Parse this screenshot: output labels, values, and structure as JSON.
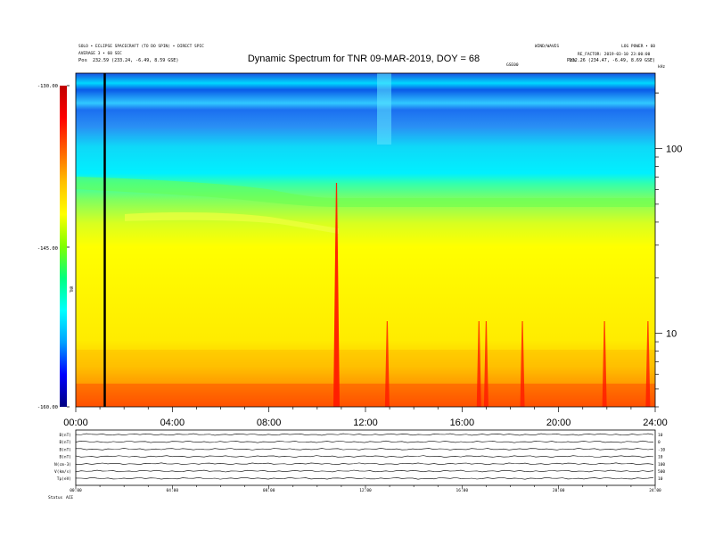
{
  "header": {
    "title": "Dynamic Spectrum for TNR 09-MAR-2019, DOY = 68",
    "meta_left_1": "SOLO • ECLIPSE SPACECRAFT (TO DO SPIN) • DIRECT SPIC",
    "meta_left_2": "AVERAGE 3 • 60 SEC",
    "meta_right_1": "WIND/WAVES",
    "meta_right_2": "LOG POWER • 60",
    "meta_right_3": "RE_FACTOR: 2019-03-10 23:00:00",
    "pos_left_label": "Pos",
    "pos_left_value": "232.59 (233.24, -6.49, 8.59 GSE)",
    "pos_right_label": "Pos",
    "pos_right_value": "232.26 (234.47, -6.49, 8.69 GSE)",
    "center_tag": "GSE00",
    "khz_label": "kHz"
  },
  "colorbar": {
    "ticks": [
      "-130.00",
      "-145.00",
      "-160.00"
    ],
    "unit": "TNR",
    "colors": [
      "#000080",
      "#0000ff",
      "#00a0ff",
      "#00ffff",
      "#00ff80",
      "#80ff00",
      "#ffff00",
      "#ffc000",
      "#ff6000",
      "#ff0000",
      "#c00000"
    ]
  },
  "bottom_panel": {
    "rows": [
      {
        "left": "B(nT)",
        "right": "10"
      },
      {
        "left": "B(nT)",
        "right": "0"
      },
      {
        "left": "B(nT)",
        "right": "-10"
      },
      {
        "left": "B(nT)",
        "right": "10"
      },
      {
        "left": "N(cm-3)",
        "right": "100"
      },
      {
        "left": "V(km/s)",
        "right": "500"
      },
      {
        "left": "Tp(eV)",
        "right": "10"
      }
    ],
    "footer_left": "Status",
    "footer_left2": "ACE",
    "x_ticks": [
      "00:00",
      "04:00",
      "08:00",
      "12:00",
      "16:00",
      "20:00",
      "24:00"
    ]
  },
  "chart_data": {
    "type": "heatmap",
    "title": "Dynamic Spectrum for TNR 09-MAR-2019, DOY = 68",
    "xlabel": "",
    "ylabel": "kHz",
    "x_ticks": [
      "00:00",
      "04:00",
      "08:00",
      "12:00",
      "16:00",
      "20:00",
      "24:00"
    ],
    "x_range_hours": [
      0,
      24
    ],
    "y_scale": "log",
    "y_ticks": [
      10,
      100
    ],
    "y_range_khz": [
      4,
      256
    ],
    "color_scale_range": [
      -160,
      -130
    ],
    "color_ticks": [
      -130,
      -145,
      -160
    ],
    "vertical_marker_hour": 1.2,
    "bursts": [
      {
        "time_hour": 10.8,
        "intensity": "strong"
      },
      {
        "time_hour": 12.9,
        "intensity": "moderate"
      },
      {
        "time_hour": 16.7,
        "intensity": "moderate"
      },
      {
        "time_hour": 17.0,
        "intensity": "moderate"
      },
      {
        "time_hour": 18.5,
        "intensity": "moderate"
      },
      {
        "time_hour": 21.9,
        "intensity": "moderate"
      },
      {
        "time_hour": 23.7,
        "intensity": "moderate"
      }
    ]
  }
}
